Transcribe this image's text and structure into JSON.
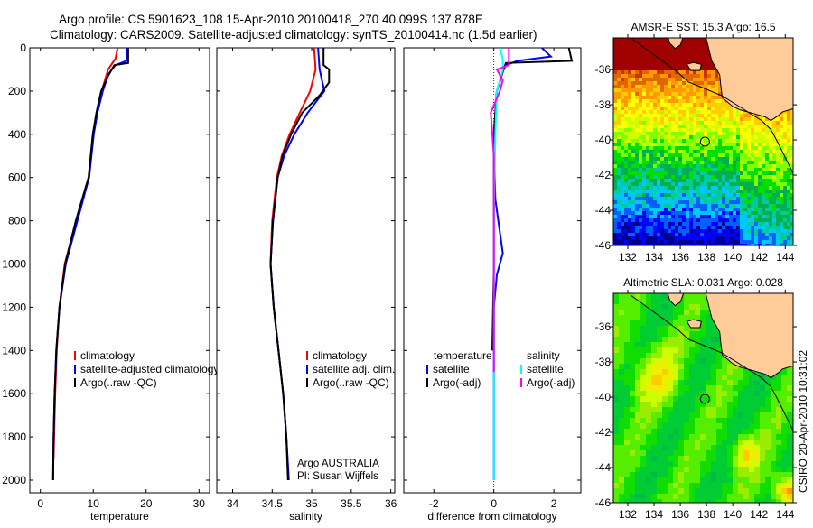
{
  "title_line1": "Argo profile: CS 5901623_108 15-Apr-2010 20100418_270 40.099S 137.878E",
  "title_line2": "Climatology: CARS2009. Satellite-adjusted climatology: synTS_20100414.nc (1.5d earlier)",
  "side_text": "CSIRO 20-Apr-2010 10:31:02",
  "credit_line1": "Argo AUSTRALIA",
  "credit_line2": "PI: Susan Wijffels",
  "colors": {
    "climatology": "#ff0000",
    "satellite": "#0000ff",
    "argo": "#000000",
    "sal_satellite": "#00ffff",
    "sal_argo": "#ff00ff",
    "land": "#ffcc99"
  },
  "chart_data": [
    {
      "type": "line",
      "xlabel": "temperature",
      "ylabel": "",
      "xlim": [
        -2,
        32
      ],
      "ylim": [
        2000,
        0
      ],
      "xticks": [
        "0",
        "10",
        "20",
        "30"
      ],
      "xtick_values": [
        0,
        10,
        20,
        30
      ],
      "yticks": [
        "0",
        "200",
        "400",
        "600",
        "800",
        "1000",
        "1200",
        "1400",
        "1600",
        "1800",
        "2000"
      ],
      "legend": [
        "climatology",
        "satellite-adjusted climatology",
        "Argo(..raw -QC)"
      ],
      "series": [
        {
          "name": "climatology",
          "color": "#ff0000",
          "points": [
            [
              14.6,
              0
            ],
            [
              14.2,
              50
            ],
            [
              12.8,
              100
            ],
            [
              11.6,
              200
            ],
            [
              10.7,
              300
            ],
            [
              10,
              400
            ],
            [
              9.2,
              600
            ],
            [
              6.8,
              800
            ],
            [
              4.6,
              1000
            ],
            [
              3.6,
              1200
            ],
            [
              3.1,
              1400
            ],
            [
              2.8,
              1600
            ],
            [
              2.6,
              1800
            ],
            [
              2.5,
              1900
            ]
          ]
        },
        {
          "name": "satellite-adjusted climatology",
          "color": "#0000ff",
          "points": [
            [
              16.3,
              0
            ],
            [
              16.3,
              60
            ],
            [
              14.2,
              80
            ],
            [
              12.9,
              120
            ],
            [
              11.8,
              200
            ],
            [
              10.8,
              300
            ],
            [
              10.1,
              400
            ],
            [
              9.2,
              600
            ],
            [
              7.0,
              800
            ],
            [
              4.8,
              1000
            ],
            [
              3.6,
              1200
            ],
            [
              3.0,
              1400
            ],
            [
              2.7,
              1600
            ],
            [
              2.5,
              1800
            ],
            [
              2.4,
              2000
            ]
          ]
        },
        {
          "name": "Argo(..raw -QC)",
          "color": "#000000",
          "points": [
            [
              16.6,
              0
            ],
            [
              16.6,
              70
            ],
            [
              14.0,
              80
            ],
            [
              12.8,
              130
            ],
            [
              11.5,
              200
            ],
            [
              10.6,
              300
            ],
            [
              9.9,
              400
            ],
            [
              9.1,
              600
            ],
            [
              6.7,
              800
            ],
            [
              4.7,
              1000
            ],
            [
              3.6,
              1200
            ],
            [
              3.0,
              1400
            ],
            [
              2.7,
              1600
            ],
            [
              2.5,
              1800
            ],
            [
              2.4,
              2000
            ]
          ]
        }
      ]
    },
    {
      "type": "line",
      "xlabel": "salinity",
      "xlim": [
        33.8,
        36.05
      ],
      "ylim": [
        2000,
        0
      ],
      "xticks": [
        "34",
        "34.5",
        "35",
        "35.5",
        "36"
      ],
      "xtick_values": [
        34,
        34.5,
        35,
        35.5,
        36
      ],
      "legend": [
        "climatology",
        "satellite adj. clim.",
        "Argo(..raw -QC)"
      ],
      "series": [
        {
          "name": "climatology",
          "color": "#ff0000",
          "points": [
            [
              35.03,
              0
            ],
            [
              35.05,
              100
            ],
            [
              34.98,
              200
            ],
            [
              34.85,
              300
            ],
            [
              34.72,
              400
            ],
            [
              34.62,
              500
            ],
            [
              34.56,
              600
            ],
            [
              34.5,
              800
            ],
            [
              34.48,
              1000
            ],
            [
              34.52,
              1200
            ],
            [
              34.58,
              1400
            ],
            [
              34.64,
              1600
            ],
            [
              34.68,
              1800
            ],
            [
              34.71,
              2000
            ]
          ]
        },
        {
          "name": "satellite adj. clim.",
          "color": "#0000ff",
          "points": [
            [
              35.08,
              0
            ],
            [
              35.1,
              100
            ],
            [
              35.16,
              200
            ],
            [
              34.95,
              300
            ],
            [
              34.78,
              400
            ],
            [
              34.65,
              500
            ],
            [
              34.57,
              600
            ],
            [
              34.51,
              800
            ],
            [
              34.48,
              1000
            ],
            [
              34.52,
              1200
            ],
            [
              34.58,
              1400
            ],
            [
              34.64,
              1600
            ],
            [
              34.68,
              1800
            ],
            [
              34.71,
              2000
            ]
          ]
        },
        {
          "name": "Argo(..raw -QC)",
          "color": "#000000",
          "points": [
            [
              35.15,
              0
            ],
            [
              35.15,
              80
            ],
            [
              35.22,
              100
            ],
            [
              35.22,
              160
            ],
            [
              35.1,
              220
            ],
            [
              34.88,
              300
            ],
            [
              34.74,
              400
            ],
            [
              34.63,
              500
            ],
            [
              34.57,
              600
            ],
            [
              34.51,
              800
            ],
            [
              34.48,
              1000
            ],
            [
              34.52,
              1200
            ],
            [
              34.58,
              1400
            ],
            [
              34.64,
              1600
            ],
            [
              34.68,
              1800
            ],
            [
              34.7,
              2000
            ]
          ]
        }
      ]
    },
    {
      "type": "line",
      "xlabel": "difference from climatology",
      "xlim": [
        -3.0,
        2.9
      ],
      "ylim": [
        2000,
        0
      ],
      "xticks": [
        "-2",
        "0",
        "2"
      ],
      "xtick_values": [
        -2,
        0,
        2
      ],
      "legend_headers": [
        "temperature",
        "salinity"
      ],
      "legend": [
        "satellite",
        "Argo(-adj)",
        "satellite",
        "Argo(-adj)"
      ],
      "series": [
        {
          "name": "temperature satellite",
          "color": "#0000ff",
          "points": [
            [
              1.6,
              0
            ],
            [
              1.9,
              40
            ],
            [
              0.8,
              60
            ],
            [
              0.4,
              80
            ],
            [
              0.3,
              110
            ],
            [
              0.1,
              200
            ],
            [
              0.0,
              400
            ],
            [
              0.05,
              700
            ],
            [
              0.2,
              850
            ],
            [
              0.3,
              950
            ],
            [
              0.1,
              1050
            ],
            [
              0.0,
              1200
            ],
            [
              0.0,
              2000
            ]
          ]
        },
        {
          "name": "temperature Argo(-adj)",
          "color": "#000000",
          "points": [
            [
              2.5,
              0
            ],
            [
              2.6,
              60
            ],
            [
              0.4,
              70
            ],
            [
              0.3,
              110
            ],
            [
              0.1,
              200
            ],
            [
              0.0,
              400
            ],
            [
              0.0,
              1000
            ],
            [
              -0.05,
              1400
            ]
          ]
        },
        {
          "name": "salinity satellite",
          "color": "#00ffff",
          "points": [
            [
              0.2,
              0
            ],
            [
              0.3,
              50
            ],
            [
              0.3,
              100
            ],
            [
              0.1,
              200
            ],
            [
              0.05,
              400
            ],
            [
              0.0,
              800
            ],
            [
              0.0,
              2000
            ]
          ]
        },
        {
          "name": "salinity Argo(-adj)",
          "color": "#ff00ff",
          "points": [
            [
              0.5,
              0
            ],
            [
              0.5,
              80
            ],
            [
              0.1,
              100
            ],
            [
              0.3,
              150
            ],
            [
              0.2,
              200
            ],
            [
              -0.1,
              300
            ],
            [
              0.0,
              500
            ],
            [
              0.0,
              800
            ],
            [
              0.0,
              1500
            ]
          ]
        }
      ]
    },
    {
      "type": "heatmap",
      "title": "AMSR-E SST: 15.3 Argo: 16.5",
      "xlim": [
        130.9,
        144.6
      ],
      "ylim": [
        -46.0,
        -34.2
      ],
      "xticks": [
        "132",
        "134",
        "136",
        "138",
        "140",
        "142",
        "144"
      ],
      "yticks": [
        "-36",
        "-38",
        "-40",
        "-42",
        "-44",
        "-46"
      ],
      "marker": {
        "lon": 137.878,
        "lat": -40.099
      }
    },
    {
      "type": "heatmap",
      "title": "Altimetric SLA: 0.031 Argo: 0.028",
      "xlim": [
        130.9,
        144.6
      ],
      "ylim": [
        -46.0,
        -34.1
      ],
      "xticks": [
        "132",
        "134",
        "136",
        "138",
        "140",
        "142",
        "144"
      ],
      "yticks": [
        "-36",
        "-38",
        "-40",
        "-42",
        "-44",
        "-46"
      ],
      "marker": {
        "lon": 137.878,
        "lat": -40.099
      }
    }
  ]
}
